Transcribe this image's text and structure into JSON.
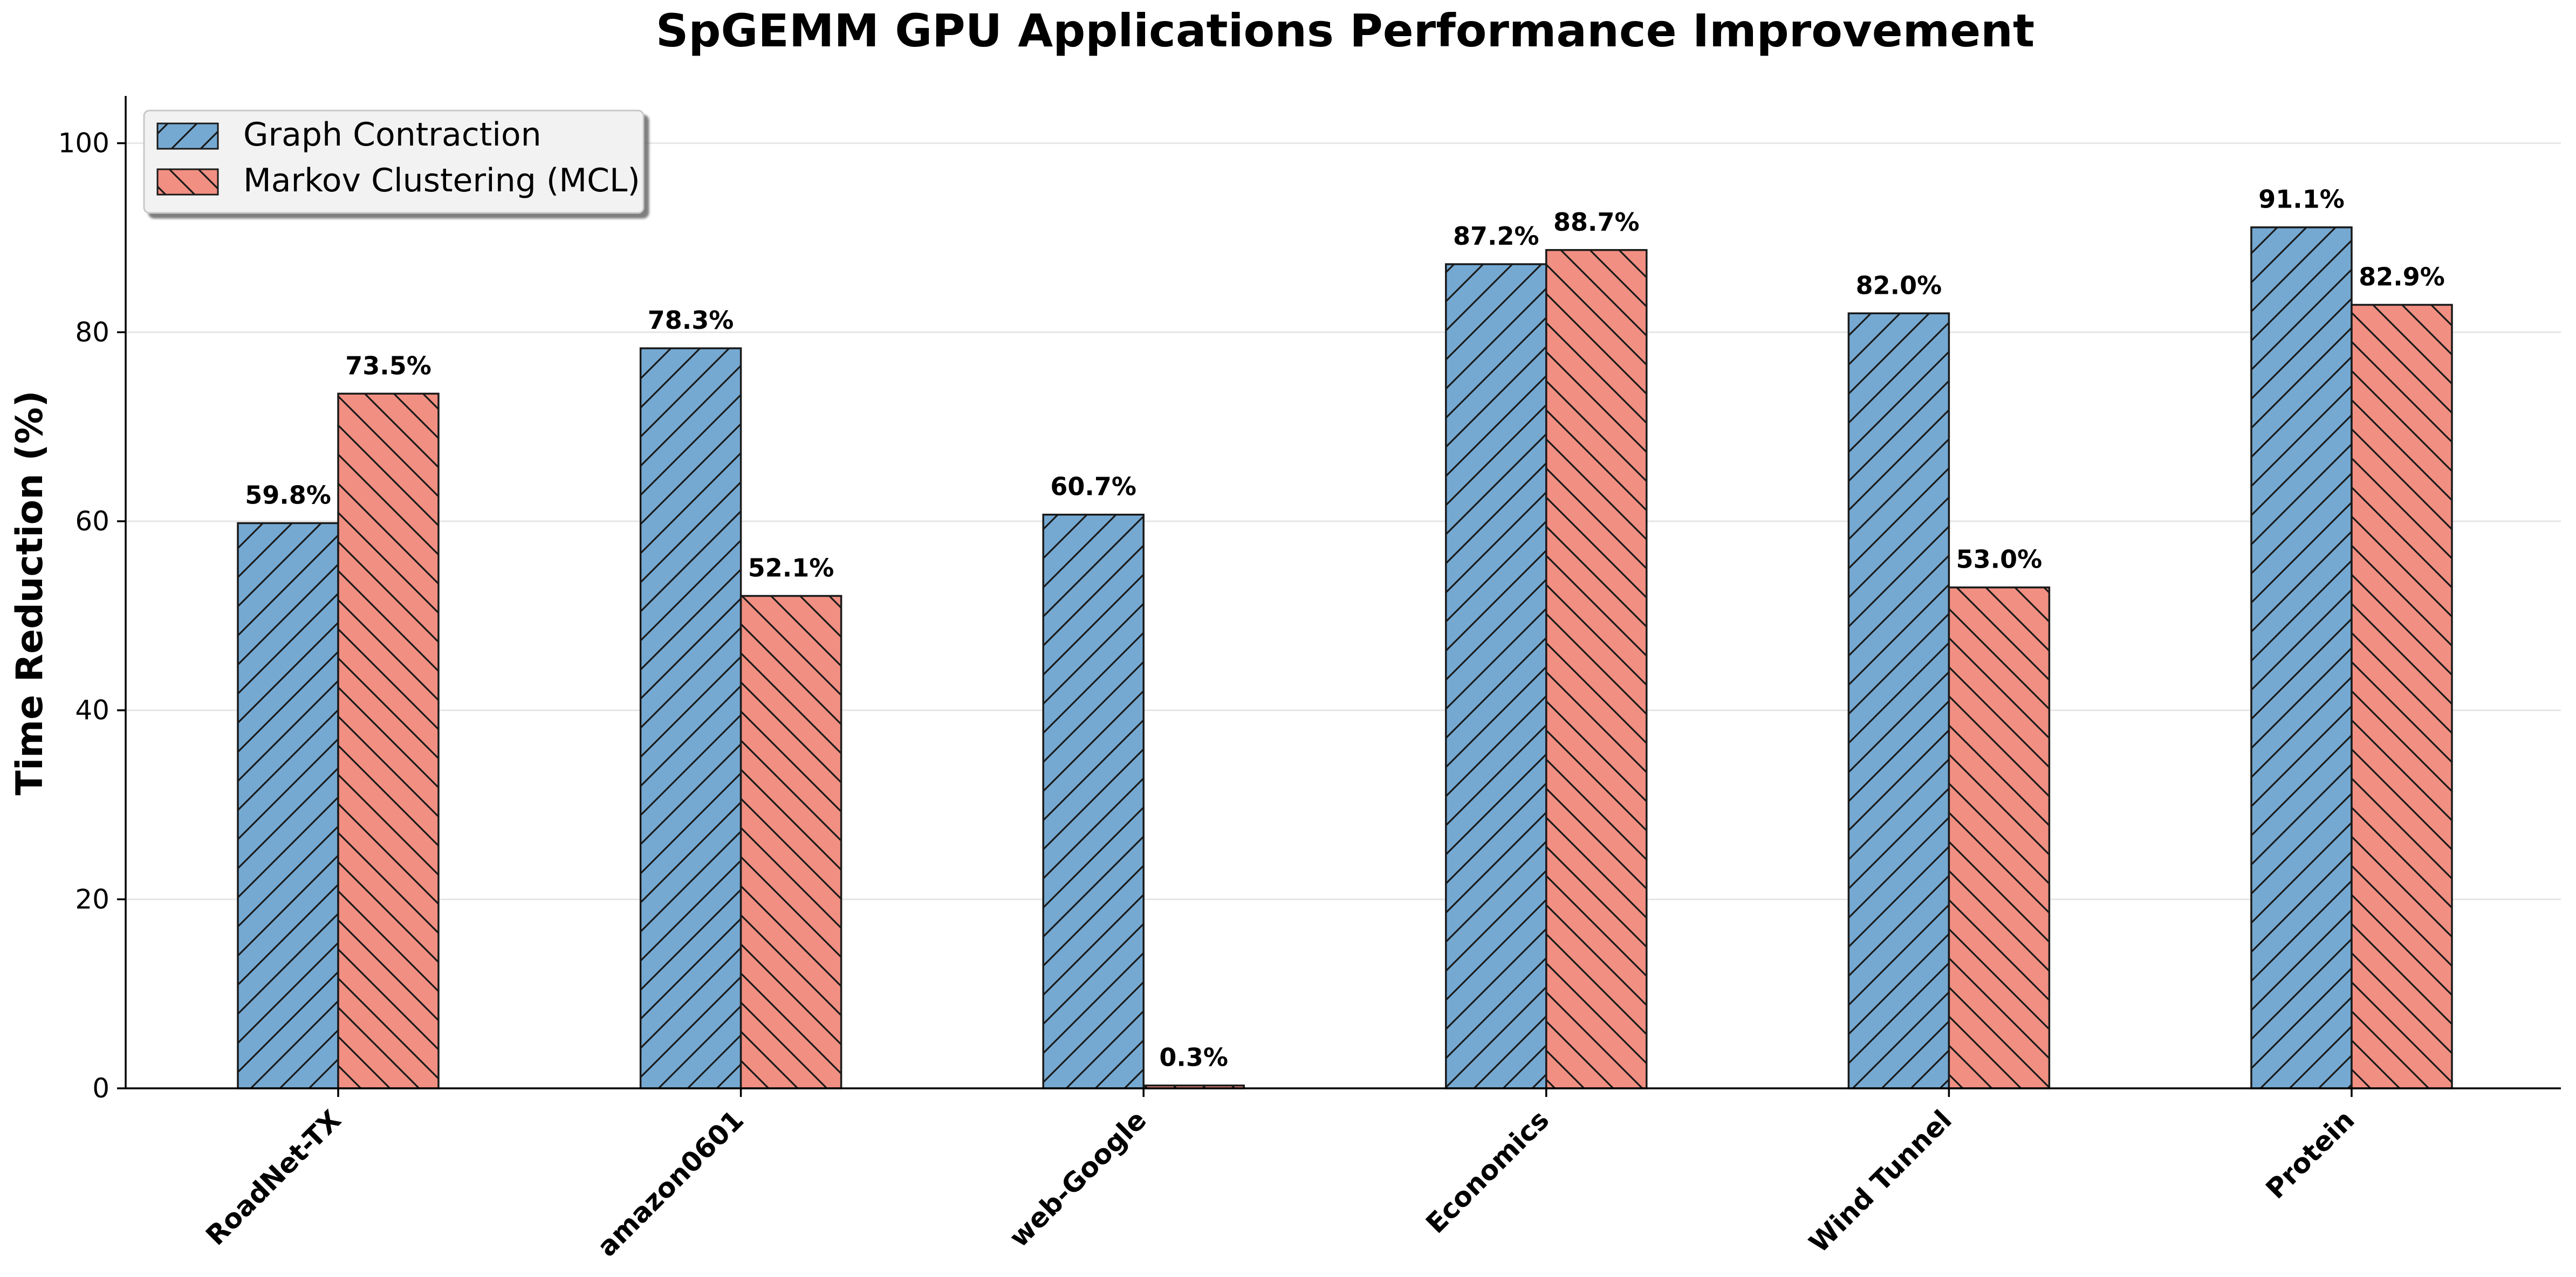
{
  "chart_data": {
    "type": "bar",
    "title": "SpGEMM GPU Applications Performance Improvement",
    "xlabel": "",
    "ylabel": "Time Reduction (%)",
    "ylim": [
      0,
      105
    ],
    "yticks": [
      0,
      20,
      40,
      60,
      80,
      100
    ],
    "grid": "horizontal",
    "legend": "top-left",
    "categories": [
      "RoadNet-TX",
      "amazon0601",
      "web-Google",
      "Economics",
      "Wind Tunnel",
      "Protein"
    ],
    "series": [
      {
        "name": "Graph Contraction",
        "values": [
          59.8,
          78.3,
          60.7,
          87.2,
          82.0,
          91.1
        ],
        "labels": [
          "59.8%",
          "78.3%",
          "60.7%",
          "87.2%",
          "82.0%",
          "91.1%"
        ],
        "color": "#75a9d2",
        "hatch": "forward"
      },
      {
        "name": "Markov Clustering (MCL)",
        "values": [
          73.5,
          52.1,
          0.3,
          88.7,
          53.0,
          82.9
        ],
        "labels": [
          "73.5%",
          "52.1%",
          "0.3%",
          "88.7%",
          "53.0%",
          "82.9%"
        ],
        "color": "#f18f82",
        "hatch": "backward"
      }
    ]
  }
}
